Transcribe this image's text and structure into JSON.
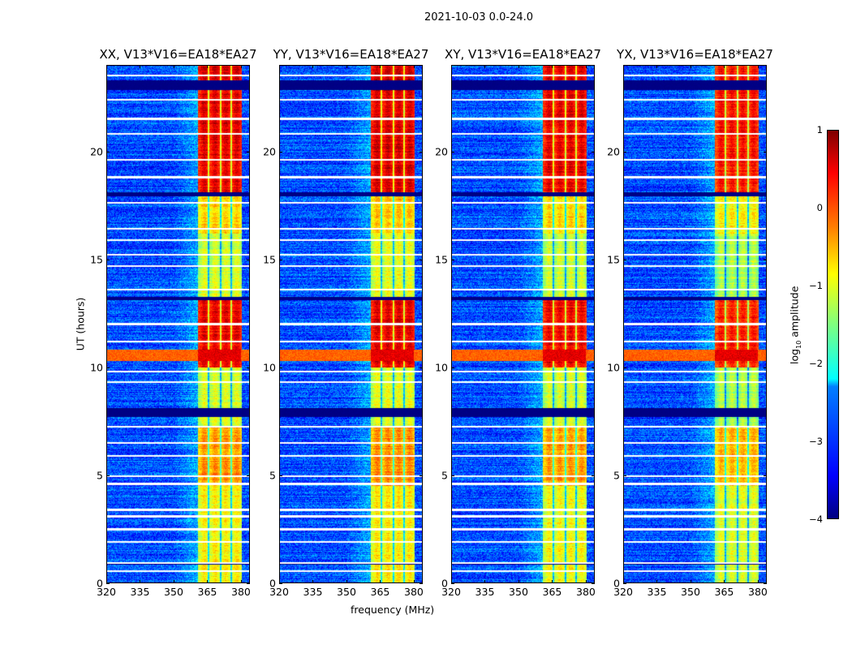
{
  "chart_data": {
    "type": "heatmap",
    "suptitle": "2021-10-03 0.0-24.0",
    "xlabel": "frequency (MHz)",
    "ylabel": "UT (hours)",
    "xlim": [
      320,
      384
    ],
    "ylim": [
      0,
      24
    ],
    "xticks": [
      "320",
      "335",
      "350",
      "365",
      "380"
    ],
    "xtick_values": [
      320,
      335,
      350,
      365,
      380
    ],
    "yticks": [
      "0",
      "5",
      "10",
      "15",
      "20"
    ],
    "ytick_values": [
      0,
      5,
      10,
      15,
      20
    ],
    "colorbar": {
      "label_main": "log",
      "label_sub": "10",
      "label_tail": " amplitude",
      "range": [
        -4,
        1
      ],
      "ticks": [
        "1",
        "0",
        "−1",
        "−2",
        "−3",
        "−4"
      ],
      "tick_values": [
        1,
        0,
        -1,
        -2,
        -3,
        -4
      ],
      "colormap": "jet"
    },
    "panels": [
      {
        "title": "XX, V13*V16=EA18*EA27",
        "seed": 11,
        "gain": 0.15
      },
      {
        "title": "YY, V13*V16=EA18*EA27",
        "seed": 23,
        "gain": 0.2
      },
      {
        "title": "XY, V13*V16=EA18*EA27",
        "seed": 37,
        "gain": 0.1
      },
      {
        "title": "YX, V13*V16=EA18*EA27",
        "seed": 51,
        "gain": -0.05
      }
    ],
    "background_log_amplitude": -3.0,
    "rfi_band_mhz": [
      361,
      380.5
    ],
    "rfi_gap_channels_mhz": [
      365.5,
      370.9,
      375.6
    ],
    "rfi_levels_by_hour": [
      {
        "from": 0,
        "to": 4.5,
        "level": -1.1
      },
      {
        "from": 4.5,
        "to": 7.2,
        "level": -0.6
      },
      {
        "from": 7.2,
        "to": 10.0,
        "level": -1.3
      },
      {
        "from": 10.0,
        "to": 13.2,
        "level": 0.2
      },
      {
        "from": 13.2,
        "to": 16.2,
        "level": -1.3
      },
      {
        "from": 16.2,
        "to": 18.0,
        "level": -0.9
      },
      {
        "from": 18.0,
        "to": 22.8,
        "level": 0.25
      },
      {
        "from": 22.8,
        "to": 24.0,
        "level": 0.3
      }
    ],
    "flagged_hours_white": [
      0.55,
      0.95,
      1.9,
      2.5,
      3.1,
      3.4,
      4.6,
      4.95,
      5.9,
      6.5,
      7.25,
      9.3,
      9.8,
      11.2,
      12.0,
      13.6,
      14.7,
      15.2,
      15.9,
      16.4,
      17.6,
      18.8,
      19.6,
      20.8,
      21.5,
      22.4,
      23.5
    ],
    "flagged_hours_black": [
      [
        22.85,
        23.3
      ],
      [
        7.7,
        8.1
      ],
      [
        13.1,
        13.25
      ],
      [
        17.9,
        18.1
      ],
      [
        0.85,
        0.9
      ]
    ],
    "broadband_hours": [
      {
        "from": 10.3,
        "to": 10.8,
        "level": 0.1
      }
    ]
  }
}
